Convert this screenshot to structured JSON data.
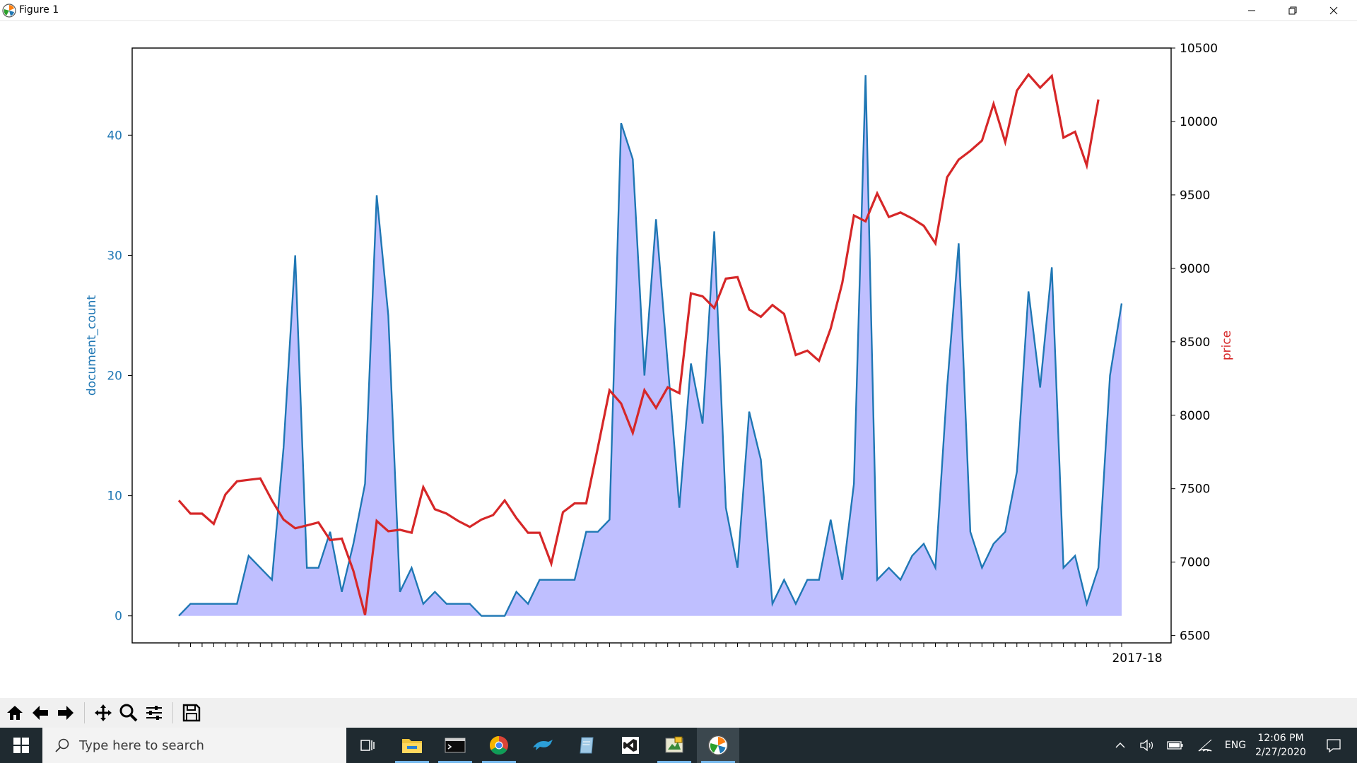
{
  "window": {
    "title": "Figure 1"
  },
  "chart_data": {
    "type": "line",
    "x_axis_note": "",
    "x_last_tick_label": "2017-18",
    "y_left": {
      "label": "document_count",
      "ticks": [
        0,
        10,
        20,
        30,
        40
      ],
      "ylim": [
        -2.25,
        47.25
      ],
      "color": "#1f77b4"
    },
    "y_right": {
      "label": "price",
      "ticks": [
        6500,
        7000,
        7500,
        8000,
        8500,
        9000,
        9500,
        10000,
        10500
      ],
      "ylim": [
        6450,
        10500
      ],
      "color": "#d62728"
    },
    "grid": false,
    "series": [
      {
        "name": "document_count",
        "axis": "left",
        "fill_color": "#bfbfff",
        "values": [
          0,
          1,
          1,
          1,
          1,
          1,
          5,
          4,
          3,
          14,
          30,
          4,
          4,
          7,
          2,
          6,
          11,
          35,
          25,
          2,
          4,
          1,
          2,
          1,
          1,
          1,
          0,
          0,
          0,
          2,
          1,
          3,
          3,
          3,
          3,
          7,
          7,
          8,
          41,
          38,
          20,
          33,
          21,
          9,
          21,
          16,
          32,
          9,
          4,
          17,
          13,
          1,
          3,
          1,
          3,
          3,
          8,
          3,
          11,
          45,
          3,
          4,
          3,
          5,
          6,
          4,
          19,
          31,
          7,
          4,
          6,
          7,
          12,
          27,
          19,
          29,
          4,
          5,
          1,
          4,
          20,
          26
        ]
      },
      {
        "name": "price",
        "axis": "right",
        "values": [
          7420,
          7330,
          7330,
          7260,
          7460,
          7550,
          7560,
          7570,
          7420,
          7290,
          7230,
          7250,
          7270,
          7150,
          7160,
          6940,
          6640,
          7280,
          7210,
          7220,
          7200,
          7510,
          7360,
          7330,
          7280,
          7240,
          7290,
          7320,
          7420,
          7300,
          7200,
          7200,
          6990,
          7340,
          7400,
          7400,
          7780,
          8170,
          8080,
          7880,
          8170,
          8050,
          8190,
          8150,
          8830,
          8810,
          8730,
          8930,
          8940,
          8720,
          8670,
          8750,
          8690,
          8410,
          8440,
          8370,
          8590,
          8900,
          9360,
          9320,
          9510,
          9350,
          9380,
          9340,
          9290,
          9170,
          9620,
          9740,
          9800,
          9870,
          10120,
          9860,
          10210,
          10320,
          10230,
          10310,
          9890,
          9930,
          9700,
          10150
        ]
      }
    ]
  },
  "toolbar": {
    "buttons": [
      {
        "icon": "home-icon"
      },
      {
        "icon": "back-arrow-icon"
      },
      {
        "icon": "forward-arrow-icon"
      },
      {
        "icon": "pan-icon"
      },
      {
        "icon": "zoom-icon"
      },
      {
        "icon": "subplots-config-icon"
      },
      {
        "icon": "save-icon"
      }
    ]
  },
  "taskbar": {
    "search_placeholder": "Type here to search",
    "tray": {
      "language": "ENG",
      "time": "12:06 PM",
      "date": "2/27/2020"
    }
  }
}
